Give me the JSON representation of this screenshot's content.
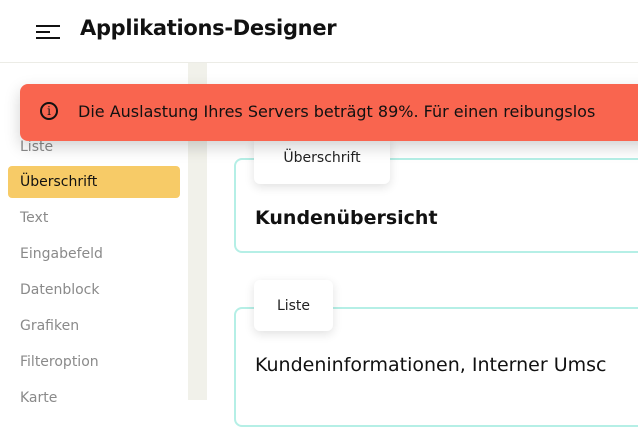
{
  "header": {
    "title": "Applikations-Designer",
    "menu_icon": "hamburger-menu-icon"
  },
  "sidebar": {
    "items": [
      {
        "label": "Liste",
        "active": false
      },
      {
        "label": "Überschrift",
        "active": true
      },
      {
        "label": "Text",
        "active": false
      },
      {
        "label": "Eingabefeld",
        "active": false
      },
      {
        "label": "Datenblock",
        "active": false
      },
      {
        "label": "Grafiken",
        "active": false
      },
      {
        "label": "Filteroption",
        "active": false
      },
      {
        "label": "Karte",
        "active": false
      }
    ]
  },
  "toast": {
    "icon": "info-icon",
    "message": "Die Auslastung Ihres Servers beträgt 89%. Für einen reibungslos",
    "color": "#f9654f"
  },
  "cards": [
    {
      "tab": "Überschrift",
      "content": "Kundenübersicht"
    },
    {
      "tab": "Liste",
      "content": "Kundeninformationen, Interner Umsc"
    }
  ],
  "colors": {
    "accent": "#f7cb67",
    "card_border": "#b5efe6",
    "background": "#f1f1ea"
  }
}
